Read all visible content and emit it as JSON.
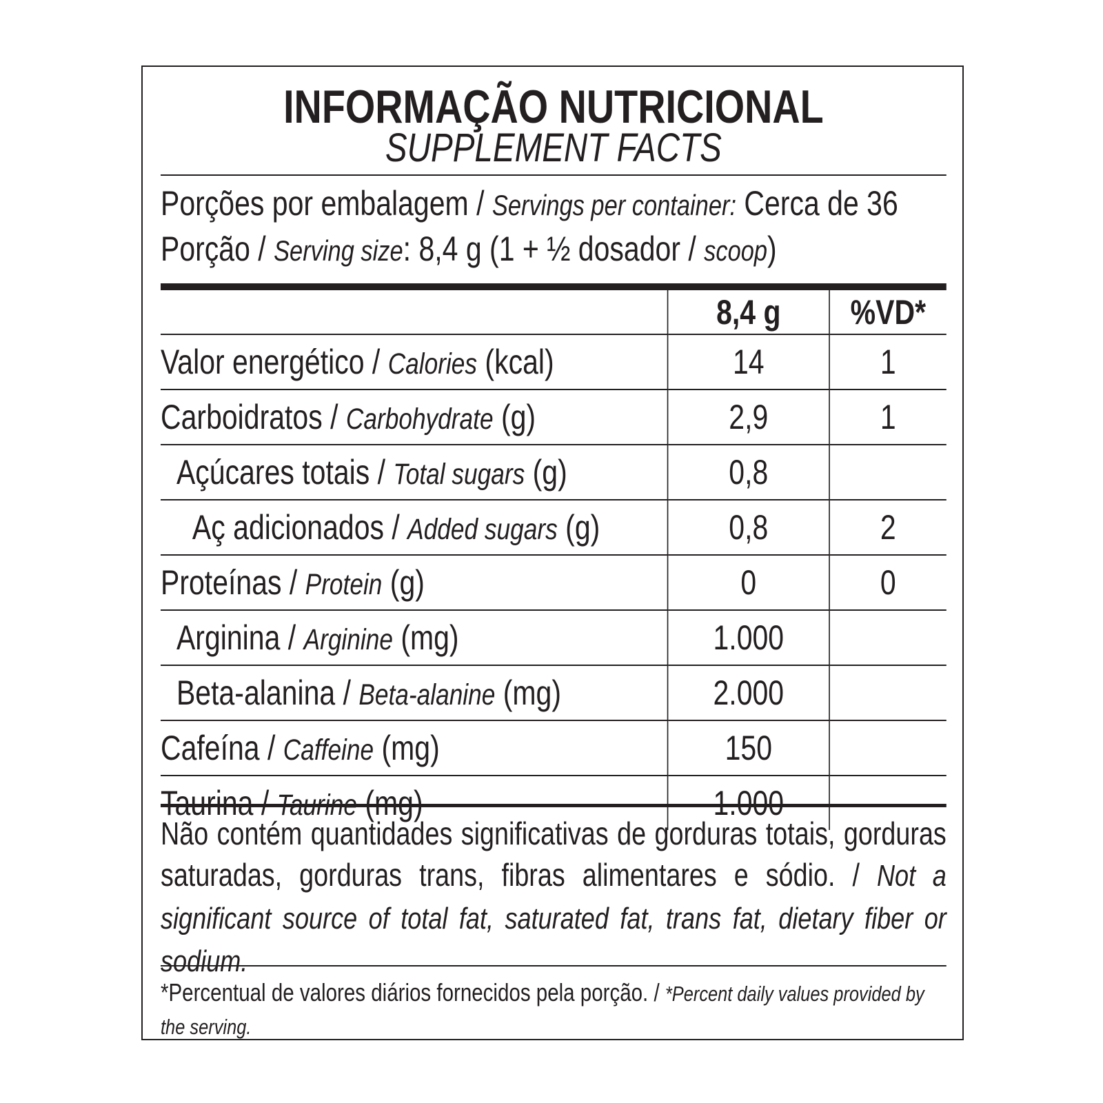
{
  "title": "INFORMAÇÃO NUTRICIONAL",
  "subtitle": "SUPPLEMENT FACTS",
  "servings": {
    "pt": "Porções por embalagem / ",
    "en": "Servings per container:",
    "value": " Cerca de 36"
  },
  "serving_size": {
    "pt": "Porção / ",
    "en": "Serving size",
    "value": ": 8,4 g (1 + ½ dosador / ",
    "scoop": "scoop",
    ")": ")"
  },
  "table": {
    "headers": [
      "",
      "8,4 g",
      "%VD*"
    ],
    "rows": [
      {
        "pt": "Valor energético / ",
        "en": "Calories",
        "unit": " (kcal)",
        "amount": "14",
        "dv": "1"
      },
      {
        "pt": "Carboidratos / ",
        "en": "Carbohydrate",
        "unit": " (g)",
        "amount": "2,9",
        "dv": "1"
      },
      {
        "pt": "Açúcares totais / ",
        "en": "Total sugars",
        "unit": " (g)",
        "amount": "0,8",
        "dv": ""
      },
      {
        "pt": "Aç adicionados / ",
        "en": "Added sugars",
        "unit": " (g)",
        "amount": "0,8",
        "dv": "2"
      },
      {
        "pt": "Proteínas / ",
        "en": "Protein",
        "unit": " (g)",
        "amount": "0",
        "dv": "0"
      },
      {
        "pt": "Arginina / ",
        "en": "Arginine",
        "unit": " (mg)",
        "amount": "1.000",
        "dv": ""
      },
      {
        "pt": "Beta-alanina / ",
        "en": "Beta-alanine",
        "unit": " (mg)",
        "amount": "2.000",
        "dv": ""
      },
      {
        "pt": "Cafeína / ",
        "en": "Caffeine",
        "unit": " (mg)",
        "amount": "150",
        "dv": ""
      },
      {
        "pt": "Taurina / ",
        "en": "Taurine",
        "unit": " (mg)",
        "amount": "1.000",
        "dv": ""
      }
    ]
  },
  "note": {
    "pt": "Não contém quantidades significativas de gorduras totais, gorduras saturadas, gorduras trans, fibras alimentares e sódio. / ",
    "en": "Not a significant source of total fat, saturated fat, trans fat, dietary fiber or sodium."
  },
  "footnote": {
    "pt": "*Percentual de valores diários fornecidos pela porção. / ",
    "en": "*Percent daily values provided by the serving."
  }
}
